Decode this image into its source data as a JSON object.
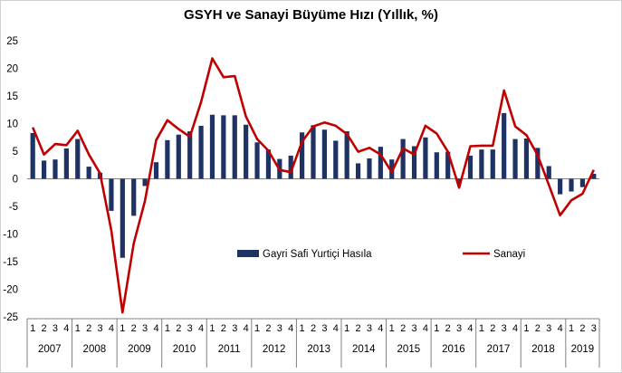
{
  "chart_data": {
    "type": "bar+line",
    "title": "GSYH ve Sanayi Büyüme Hızı (Yıllık,  %)",
    "quarters": [
      "1",
      "2",
      "3",
      "4",
      "1",
      "2",
      "3",
      "4",
      "1",
      "2",
      "3",
      "4",
      "1",
      "2",
      "3",
      "4",
      "1",
      "2",
      "3",
      "4",
      "1",
      "2",
      "3",
      "4",
      "1",
      "2",
      "3",
      "4",
      "1",
      "2",
      "3",
      "4",
      "1",
      "2",
      "3",
      "4",
      "1",
      "2",
      "3",
      "4",
      "1",
      "2",
      "3",
      "4",
      "1",
      "2",
      "3",
      "4",
      "1",
      "2",
      "3"
    ],
    "years": [
      {
        "label": "2007",
        "quarters": 4
      },
      {
        "label": "2008",
        "quarters": 4
      },
      {
        "label": "2009",
        "quarters": 4
      },
      {
        "label": "2010",
        "quarters": 4
      },
      {
        "label": "2011",
        "quarters": 4
      },
      {
        "label": "2012",
        "quarters": 4
      },
      {
        "label": "2013",
        "quarters": 4
      },
      {
        "label": "2014",
        "quarters": 4
      },
      {
        "label": "2015",
        "quarters": 4
      },
      {
        "label": "2016",
        "quarters": 4
      },
      {
        "label": "2017",
        "quarters": 4
      },
      {
        "label": "2018",
        "quarters": 4
      },
      {
        "label": "2019",
        "quarters": 3
      }
    ],
    "ylim": [
      -25,
      25
    ],
    "yticks": [
      25,
      20,
      15,
      10,
      5,
      0,
      -5,
      -10,
      -15,
      -20,
      -25
    ],
    "series": [
      {
        "name": "Gayri Safi Yurtiçi Hasıla",
        "type": "bar",
        "color": "#1f3264",
        "values": [
          8.3,
          3.3,
          3.5,
          5.5,
          7.2,
          2.2,
          1.1,
          -5.8,
          -14.3,
          -6.7,
          -1.3,
          3.0,
          7.0,
          8.0,
          8.6,
          9.6,
          11.6,
          11.5,
          11.5,
          9.8,
          6.6,
          5.3,
          3.6,
          4.2,
          8.4,
          9.7,
          8.9,
          6.9,
          8.6,
          2.8,
          3.7,
          5.8,
          3.5,
          7.2,
          5.9,
          7.5,
          4.8,
          4.9,
          -0.8,
          4.2,
          5.3,
          5.3,
          11.9,
          7.2,
          7.3,
          5.6,
          2.3,
          -2.8,
          -2.3,
          -1.5,
          0.9
        ]
      },
      {
        "name": "Sanayi",
        "type": "line",
        "color": "#c00000",
        "values": [
          9.3,
          4.4,
          6.3,
          6.1,
          8.7,
          4.4,
          1.0,
          -9.3,
          -24.2,
          -11.7,
          -4.0,
          7.0,
          10.6,
          9.0,
          7.6,
          13.9,
          21.8,
          18.4,
          18.6,
          11.3,
          7.2,
          5.1,
          1.6,
          1.2,
          6.7,
          9.5,
          10.2,
          9.6,
          8.1,
          4.9,
          5.6,
          4.4,
          1.2,
          5.5,
          4.4,
          9.6,
          8.2,
          4.9,
          -1.6,
          5.9,
          6.0,
          6.0,
          16.0,
          9.5,
          7.9,
          4.3,
          -1.1,
          -6.6,
          -3.9,
          -2.7,
          1.6
        ]
      }
    ],
    "legend": {
      "placement": "inside-lower",
      "items": [
        "Gayri Safi Yurtiçi Hasıla",
        "Sanayi"
      ]
    },
    "grid": false
  }
}
